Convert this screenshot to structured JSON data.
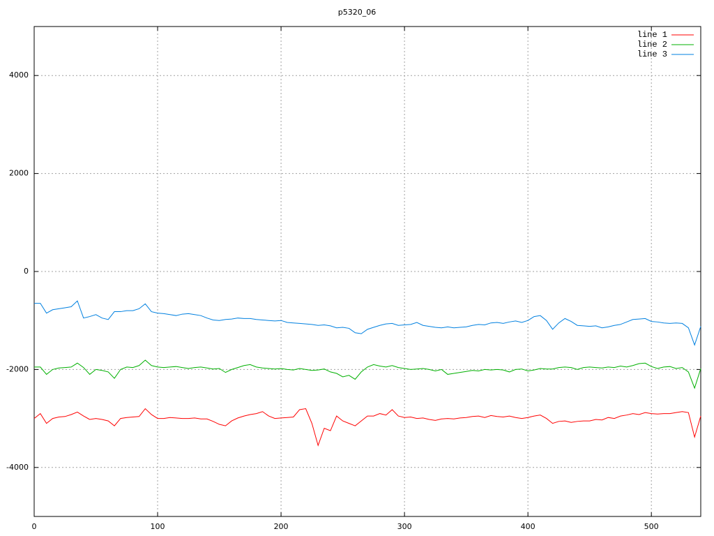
{
  "chart_data": {
    "type": "line",
    "title": "p5320_06",
    "x": [
      0,
      5,
      10,
      15,
      20,
      25,
      30,
      35,
      40,
      45,
      50,
      55,
      60,
      65,
      70,
      75,
      80,
      85,
      90,
      95,
      100,
      105,
      110,
      115,
      120,
      125,
      130,
      135,
      140,
      145,
      150,
      155,
      160,
      165,
      170,
      175,
      180,
      185,
      190,
      195,
      200,
      205,
      210,
      215,
      220,
      225,
      230,
      235,
      240,
      245,
      250,
      255,
      260,
      265,
      270,
      275,
      280,
      285,
      290,
      295,
      300,
      305,
      310,
      315,
      320,
      325,
      330,
      335,
      340,
      345,
      350,
      355,
      360,
      365,
      370,
      375,
      380,
      385,
      390,
      395,
      400,
      405,
      410,
      415,
      420,
      425,
      430,
      435,
      440,
      445,
      450,
      455,
      460,
      465,
      470,
      475,
      480,
      485,
      490,
      495,
      500,
      505,
      510,
      515,
      520,
      525,
      530,
      535,
      540
    ],
    "series": [
      {
        "name": "line 1",
        "color": "#ff0000",
        "values": [
          -3000,
          -2900,
          -3100,
          -3000,
          -2970,
          -2960,
          -2920,
          -2870,
          -2950,
          -3020,
          -3000,
          -3020,
          -3050,
          -3150,
          -3000,
          -2980,
          -2970,
          -2960,
          -2800,
          -2920,
          -3000,
          -3000,
          -2980,
          -2990,
          -3000,
          -3000,
          -2990,
          -3010,
          -3010,
          -3060,
          -3120,
          -3150,
          -3050,
          -2990,
          -2950,
          -2920,
          -2900,
          -2860,
          -2950,
          -3000,
          -2990,
          -2980,
          -2970,
          -2820,
          -2800,
          -3100,
          -3550,
          -3200,
          -3250,
          -2950,
          -3050,
          -3100,
          -3150,
          -3050,
          -2950,
          -2950,
          -2900,
          -2930,
          -2820,
          -2950,
          -2980,
          -2970,
          -3000,
          -2990,
          -3020,
          -3040,
          -3010,
          -3000,
          -3010,
          -2990,
          -2980,
          -2960,
          -2950,
          -2980,
          -2940,
          -2960,
          -2970,
          -2950,
          -2980,
          -3000,
          -2980,
          -2950,
          -2930,
          -3000,
          -3100,
          -3060,
          -3050,
          -3080,
          -3060,
          -3050,
          -3050,
          -3020,
          -3030,
          -2980,
          -3000,
          -2950,
          -2930,
          -2900,
          -2920,
          -2880,
          -2900,
          -2910,
          -2900,
          -2900,
          -2880,
          -2860,
          -2880,
          -3380,
          -2950
        ]
      },
      {
        "name": "line 2",
        "color": "#00b000",
        "values": [
          -1950,
          -1950,
          -2100,
          -2000,
          -1970,
          -1960,
          -1950,
          -1870,
          -1960,
          -2100,
          -2000,
          -2020,
          -2050,
          -2180,
          -2000,
          -1950,
          -1960,
          -1920,
          -1810,
          -1920,
          -1950,
          -1960,
          -1950,
          -1940,
          -1960,
          -1980,
          -1960,
          -1950,
          -1970,
          -1990,
          -1980,
          -2060,
          -2000,
          -1960,
          -1920,
          -1900,
          -1950,
          -1970,
          -1980,
          -1990,
          -1980,
          -2000,
          -2010,
          -1980,
          -2000,
          -2020,
          -2010,
          -1990,
          -2050,
          -2080,
          -2150,
          -2120,
          -2200,
          -2050,
          -1950,
          -1900,
          -1930,
          -1950,
          -1920,
          -1960,
          -1980,
          -2000,
          -1990,
          -1980,
          -2000,
          -2030,
          -2000,
          -2100,
          -2080,
          -2060,
          -2040,
          -2020,
          -2030,
          -2000,
          -2010,
          -2000,
          -2010,
          -2050,
          -2000,
          -1990,
          -2030,
          -2010,
          -1980,
          -1990,
          -1990,
          -1960,
          -1950,
          -1960,
          -2000,
          -1960,
          -1950,
          -1960,
          -1970,
          -1950,
          -1960,
          -1930,
          -1950,
          -1920,
          -1880,
          -1870,
          -1940,
          -1980,
          -1950,
          -1940,
          -1980,
          -1960,
          -2050,
          -2380,
          -1980
        ]
      },
      {
        "name": "line 3",
        "color": "#0080e0",
        "values": [
          -650,
          -650,
          -850,
          -780,
          -760,
          -740,
          -720,
          -600,
          -950,
          -920,
          -880,
          -950,
          -980,
          -820,
          -820,
          -800,
          -800,
          -760,
          -660,
          -820,
          -850,
          -860,
          -880,
          -900,
          -870,
          -860,
          -880,
          -900,
          -950,
          -990,
          -1000,
          -980,
          -970,
          -950,
          -960,
          -960,
          -980,
          -990,
          -1000,
          -1010,
          -1000,
          -1040,
          -1050,
          -1060,
          -1070,
          -1080,
          -1100,
          -1090,
          -1110,
          -1150,
          -1140,
          -1160,
          -1250,
          -1270,
          -1180,
          -1140,
          -1100,
          -1070,
          -1060,
          -1100,
          -1090,
          -1080,
          -1040,
          -1100,
          -1120,
          -1140,
          -1150,
          -1130,
          -1150,
          -1140,
          -1130,
          -1100,
          -1080,
          -1090,
          -1050,
          -1040,
          -1060,
          -1030,
          -1010,
          -1040,
          -1000,
          -920,
          -900,
          -1000,
          -1180,
          -1050,
          -960,
          -1020,
          -1100,
          -1110,
          -1120,
          -1110,
          -1150,
          -1130,
          -1100,
          -1080,
          -1030,
          -980,
          -970,
          -960,
          -1020,
          -1030,
          -1050,
          -1060,
          -1050,
          -1060,
          -1150,
          -1500,
          -1120
        ]
      }
    ],
    "xlim": [
      0,
      540
    ],
    "ylim": [
      -5000,
      5000
    ],
    "xticks": [
      0,
      100,
      200,
      300,
      400,
      500
    ],
    "yticks": [
      -4000,
      -2000,
      0,
      2000,
      4000
    ],
    "grid": true,
    "legend": "top-right"
  }
}
